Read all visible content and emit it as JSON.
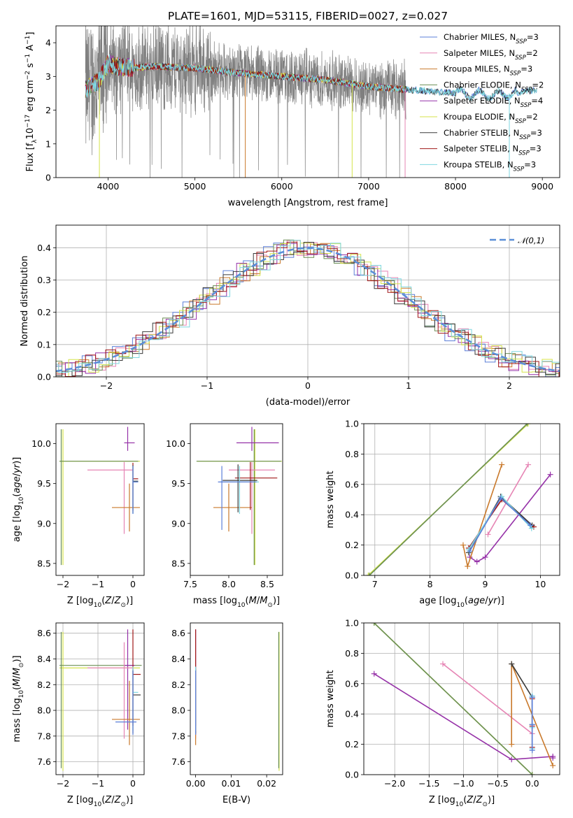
{
  "figure_title": "PLATE=1601, MJD=53115, FIBERID=0027, z=0.027",
  "models": [
    {
      "name": "Chabrier MILES",
      "nssp": "3",
      "color": "#5b7fd8"
    },
    {
      "name": "Salpeter MILES",
      "nssp": "2",
      "color": "#e684b4"
    },
    {
      "name": "Kroupa MILES",
      "nssp": "3",
      "color": "#c9792b"
    },
    {
      "name": "Chabrier ELODIE",
      "nssp": "2",
      "color": "#6b8f55"
    },
    {
      "name": "Salpeter ELODIE",
      "nssp": "4",
      "color": "#9632a8"
    },
    {
      "name": "Kroupa ELODIE",
      "nssp": "2",
      "color": "#d4e34a"
    },
    {
      "name": "Chabrier STELIB",
      "nssp": "3",
      "color": "#3a3a3a"
    },
    {
      "name": "Salpeter STELIB",
      "nssp": "3",
      "color": "#a01818"
    },
    {
      "name": "Kroupa STELIB",
      "nssp": "3",
      "color": "#7fd7e0"
    }
  ],
  "legend_nssp_prefix": "N",
  "legend_nssp_sub": "SSP",
  "chart_data": [
    {
      "id": "spectrum",
      "type": "line",
      "xlabel": "wavelength [Angstrom, rest frame]",
      "ylabel": "Flux [fλ10⁻¹⁷ erg cm⁻² s⁻¹ A⁻¹]",
      "xlim": [
        3400,
        9200
      ],
      "ylim": [
        0,
        4.5
      ],
      "xticks": [
        4000,
        5000,
        6000,
        7000,
        8000,
        9000
      ],
      "yticks": [
        0,
        1,
        2,
        3,
        4
      ],
      "grid": false,
      "legend_position": "top-right",
      "data_wavelength_range": [
        3740,
        7430
      ],
      "model_wavelength_range": [
        3740,
        8940
      ],
      "continuum_knots_x": [
        3740,
        3900,
        4000,
        4100,
        4300,
        4500,
        5000,
        5500,
        6000,
        6500,
        7000,
        7500,
        8000,
        8500,
        8940
      ],
      "continuum_knots_y": [
        2.6,
        2.9,
        3.4,
        3.3,
        3.25,
        3.3,
        3.25,
        3.1,
        3.0,
        2.9,
        2.7,
        2.6,
        2.5,
        2.45,
        2.6
      ]
    },
    {
      "id": "residuals",
      "type": "step",
      "xlabel": "(data-model)/error",
      "ylabel": "Normed distribution",
      "xlim": [
        -2.5,
        2.5
      ],
      "ylim": [
        0,
        0.47
      ],
      "xticks": [
        -2,
        -1,
        0,
        1,
        2
      ],
      "yticks": [
        0.0,
        0.1,
        0.2,
        0.3,
        0.4
      ],
      "grid": true,
      "legend_position": "top-right",
      "reference_label": "𝒩(0,1)",
      "reference": "normal(0,1)",
      "bin_width": 0.1
    },
    {
      "id": "age_vs_Z",
      "type": "errorbar",
      "xlabel": "Z [log10(Z/Z⊙)]",
      "ylabel": "age  [log10(age/yr)]",
      "xlim": [
        -2.2,
        0.32
      ],
      "ylim": [
        8.35,
        10.25
      ],
      "xticks": [
        -2,
        -1,
        0
      ],
      "yticks": [
        8.5,
        9.0,
        9.5,
        10.0
      ],
      "grid": false,
      "points": [
        {
          "model": 5,
          "x": -2.0,
          "xerr": [
            0.1,
            2.2
          ],
          "y": 9.78,
          "yerr": [
            1.3,
            0.4
          ]
        },
        {
          "model": 3,
          "x": -2.05,
          "xerr": [
            0.05,
            2.2
          ],
          "y": 9.78,
          "yerr": [
            1.3,
            0.4
          ]
        },
        {
          "model": 4,
          "x": -0.15,
          "xerr": [
            0.1,
            0.2
          ],
          "y": 10.01,
          "yerr": [
            0.1,
            0.2
          ]
        },
        {
          "model": 1,
          "x": -0.25,
          "xerr": [
            1.05,
            0.25
          ],
          "y": 9.67,
          "yerr": [
            0.8,
            0.1
          ]
        },
        {
          "model": 2,
          "x": -0.1,
          "xerr": [
            0.5,
            0.3
          ],
          "y": 9.2,
          "yerr": [
            0.3,
            0.3
          ]
        },
        {
          "model": 7,
          "x": 0.0,
          "xerr": [
            0.0,
            0.15
          ],
          "y": 9.56,
          "yerr": [
            0.4,
            0.2
          ]
        },
        {
          "model": 6,
          "x": 0.0,
          "xerr": [
            0.0,
            0.15
          ],
          "y": 9.53,
          "yerr": [
            0.4,
            0.2
          ]
        },
        {
          "model": 8,
          "x": 0.0,
          "xerr": [
            0.0,
            0.15
          ],
          "y": 9.52,
          "yerr": [
            0.4,
            0.2
          ]
        },
        {
          "model": 0,
          "x": 0.0,
          "xerr": [
            0.0,
            0.15
          ],
          "y": 9.52,
          "yerr": [
            0.4,
            0.2
          ]
        }
      ]
    },
    {
      "id": "age_vs_mass",
      "type": "errorbar",
      "xlabel": "mass [log10(M/M⊙)]",
      "ylabel": "",
      "xlim": [
        7.5,
        8.7
      ],
      "ylim": [
        8.35,
        10.25
      ],
      "xticks": [
        7.5,
        8.0,
        8.5
      ],
      "yticks": [
        8.5,
        9.0,
        9.5,
        10.0
      ],
      "grid": false,
      "points": [
        {
          "model": 5,
          "x": 8.34,
          "xerr": [
            0.75,
            0.35
          ],
          "y": 9.78,
          "yerr": [
            1.3,
            0.4
          ]
        },
        {
          "model": 3,
          "x": 8.33,
          "xerr": [
            0.75,
            0.35
          ],
          "y": 9.78,
          "yerr": [
            1.3,
            0.4
          ]
        },
        {
          "model": 4,
          "x": 8.3,
          "xerr": [
            0.2,
            0.35
          ],
          "y": 10.01,
          "yerr": [
            0.1,
            0.2
          ]
        },
        {
          "model": 1,
          "x": 8.3,
          "xerr": [
            0.3,
            0.3
          ],
          "y": 9.67,
          "yerr": [
            0.8,
            0.1
          ]
        },
        {
          "model": 2,
          "x": 8.0,
          "xerr": [
            0.2,
            0.3
          ],
          "y": 9.2,
          "yerr": [
            0.3,
            0.3
          ]
        },
        {
          "model": 7,
          "x": 8.28,
          "xerr": [
            0.2,
            0.35
          ],
          "y": 9.57,
          "yerr": [
            0.4,
            0.2
          ]
        },
        {
          "model": 6,
          "x": 8.12,
          "xerr": [
            0.2,
            0.25
          ],
          "y": 9.54,
          "yerr": [
            0.4,
            0.2
          ]
        },
        {
          "model": 8,
          "x": 8.14,
          "xerr": [
            0.25,
            0.25
          ],
          "y": 9.52,
          "yerr": [
            0.4,
            0.2
          ]
        },
        {
          "model": 0,
          "x": 7.91,
          "xerr": [
            0.05,
            0.45
          ],
          "y": 9.52,
          "yerr": [
            0.6,
            0.2
          ]
        }
      ]
    },
    {
      "id": "massweight_vs_age",
      "type": "line",
      "xlabel": "age  [log10(age/yr)]",
      "ylabel": "mass weight",
      "xlim": [
        6.8,
        10.35
      ],
      "ylim": [
        0,
        1.0
      ],
      "xticks": [
        7,
        8,
        9,
        10
      ],
      "yticks": [
        0.0,
        0.2,
        0.4,
        0.6,
        0.8,
        1.0
      ],
      "grid": true,
      "series": [
        {
          "model": 5,
          "x": [
            6.88,
            9.78
          ],
          "y": [
            0.0,
            1.0
          ]
        },
        {
          "model": 3,
          "x": [
            6.9,
            9.76
          ],
          "y": [
            0.0,
            1.0
          ]
        },
        {
          "model": 4,
          "x": [
            8.72,
            8.85,
            9.0,
            10.18
          ],
          "y": [
            0.12,
            0.09,
            0.12,
            0.665
          ]
        },
        {
          "model": 1,
          "x": [
            9.05,
            9.78
          ],
          "y": [
            0.27,
            0.73
          ]
        },
        {
          "model": 2,
          "x": [
            8.6,
            8.68,
            9.3
          ],
          "y": [
            0.2,
            0.06,
            0.73
          ]
        },
        {
          "model": 7,
          "x": [
            8.7,
            9.3,
            9.88
          ],
          "y": [
            0.18,
            0.5,
            0.32
          ]
        },
        {
          "model": 6,
          "x": [
            8.7,
            9.28,
            9.85
          ],
          "y": [
            0.15,
            0.52,
            0.33
          ]
        },
        {
          "model": 8,
          "x": [
            8.7,
            9.3,
            9.84
          ],
          "y": [
            0.17,
            0.52,
            0.31
          ]
        },
        {
          "model": 0,
          "x": [
            8.72,
            9.28,
            9.82
          ],
          "y": [
            0.16,
            0.51,
            0.33
          ]
        }
      ]
    },
    {
      "id": "mass_vs_Z",
      "type": "errorbar",
      "xlabel": "Z [log10(Z/Z⊙)]",
      "ylabel": "mass [log10(M/M⊙)]",
      "xlim": [
        -2.2,
        0.32
      ],
      "ylim": [
        7.5,
        8.68
      ],
      "xticks": [
        -2,
        -1,
        0
      ],
      "yticks": [
        7.6,
        7.8,
        8.0,
        8.2,
        8.4,
        8.6
      ],
      "grid": true,
      "points": [
        {
          "model": 5,
          "x": -2.0,
          "xerr": [
            0.1,
            2.2
          ],
          "y": 8.33,
          "yerr": [
            0.8,
            0.28
          ]
        },
        {
          "model": 3,
          "x": -2.05,
          "xerr": [
            0.05,
            2.3
          ],
          "y": 8.35,
          "yerr": [
            0.8,
            0.26
          ]
        },
        {
          "model": 4,
          "x": -0.15,
          "xerr": [
            0.1,
            0.2
          ],
          "y": 8.35,
          "yerr": [
            0.5,
            0.28
          ]
        },
        {
          "model": 1,
          "x": -0.25,
          "xerr": [
            1.05,
            0.25
          ],
          "y": 8.33,
          "yerr": [
            0.55,
            0.2
          ]
        },
        {
          "model": 2,
          "x": -0.1,
          "xerr": [
            0.5,
            0.3
          ],
          "y": 7.93,
          "yerr": [
            0.2,
            0.3
          ]
        },
        {
          "model": 7,
          "x": 0.0,
          "xerr": [
            0.0,
            0.22
          ],
          "y": 8.28,
          "yerr": [
            0.4,
            0.35
          ]
        },
        {
          "model": 6,
          "x": 0.0,
          "xerr": [
            0.0,
            0.22
          ],
          "y": 8.12,
          "yerr": [
            0.3,
            0.2
          ]
        },
        {
          "model": 8,
          "x": 0.0,
          "xerr": [
            0.0,
            0.15
          ],
          "y": 8.14,
          "yerr": [
            0.3,
            0.2
          ]
        },
        {
          "model": 0,
          "x": 0.0,
          "xerr": [
            0.5,
            0.1
          ],
          "y": 7.91,
          "yerr": [
            0.1,
            0.4
          ]
        }
      ]
    },
    {
      "id": "mass_vs_ebv",
      "type": "errorbar",
      "xlabel": "E(B-V)",
      "ylabel": "",
      "xlim": [
        -0.0015,
        0.0245
      ],
      "ylim": [
        7.5,
        8.68
      ],
      "xticks": [
        0.0,
        0.01,
        0.02
      ],
      "yticks": [
        7.6,
        7.8,
        8.0,
        8.2,
        8.4,
        8.6
      ],
      "grid": false,
      "points": [
        {
          "model": 5,
          "x": 0.0235,
          "xerr": [
            0,
            0
          ],
          "y": 8.33,
          "yerr": [
            0.8,
            0.28
          ]
        },
        {
          "model": 3,
          "x": 0.0234,
          "xerr": [
            0,
            0
          ],
          "y": 8.35,
          "yerr": [
            0.8,
            0.26
          ]
        },
        {
          "model": 4,
          "x": 0.0,
          "xerr": [
            0,
            0
          ],
          "y": 8.35,
          "yerr": [
            0.5,
            0.28
          ]
        },
        {
          "model": 1,
          "x": 0.0,
          "xerr": [
            0,
            0
          ],
          "y": 8.33,
          "yerr": [
            0.55,
            0.2
          ]
        },
        {
          "model": 2,
          "x": 0.0,
          "xerr": [
            0,
            0
          ],
          "y": 7.93,
          "yerr": [
            0.2,
            0.3
          ]
        },
        {
          "model": 7,
          "x": 0.0,
          "xerr": [
            0,
            0
          ],
          "y": 8.28,
          "yerr": [
            0.4,
            0.35
          ]
        },
        {
          "model": 6,
          "x": 0.0,
          "xerr": [
            0,
            0
          ],
          "y": 8.12,
          "yerr": [
            0.3,
            0.2
          ]
        },
        {
          "model": 8,
          "x": 0.0,
          "xerr": [
            0,
            0
          ],
          "y": 8.14,
          "yerr": [
            0.3,
            0.2
          ]
        },
        {
          "model": 0,
          "x": 0.0,
          "xerr": [
            0,
            0
          ],
          "y": 7.91,
          "yerr": [
            0.1,
            0.4
          ]
        }
      ]
    },
    {
      "id": "massweight_vs_Z",
      "type": "line",
      "xlabel": "Z [log10(Z/Z⊙)]",
      "ylabel": "mass weight",
      "xlim": [
        -2.45,
        0.4
      ],
      "ylim": [
        0,
        1.0
      ],
      "xticks": [
        -2.0,
        -1.5,
        -1.0,
        -0.5,
        0.0
      ],
      "yticks": [
        0.0,
        0.2,
        0.4,
        0.6,
        0.8,
        1.0
      ],
      "grid": true,
      "series": [
        {
          "model": 5,
          "x": [
            -2.3,
            0.0
          ],
          "y": [
            1.0,
            0.0
          ]
        },
        {
          "model": 3,
          "x": [
            -2.3,
            0.0
          ],
          "y": [
            1.0,
            0.0
          ]
        },
        {
          "model": 4,
          "x": [
            -2.3,
            -0.3,
            0.3,
            0.3
          ],
          "y": [
            0.665,
            0.1,
            0.12,
            0.11
          ]
        },
        {
          "model": 1,
          "x": [
            -1.3,
            0.0
          ],
          "y": [
            0.73,
            0.27
          ]
        },
        {
          "model": 2,
          "x": [
            -0.3,
            -0.3,
            0.3
          ],
          "y": [
            0.2,
            0.73,
            0.06
          ]
        },
        {
          "model": 7,
          "x": [
            0.0,
            0.0,
            0.0
          ],
          "y": [
            0.18,
            0.5,
            0.32
          ]
        },
        {
          "model": 6,
          "x": [
            -0.3,
            0.0,
            0.0
          ],
          "y": [
            0.73,
            0.51,
            0.33
          ]
        },
        {
          "model": 8,
          "x": [
            0.0,
            0.0,
            0.0
          ],
          "y": [
            0.17,
            0.52,
            0.31
          ]
        },
        {
          "model": 0,
          "x": [
            0.0,
            0.0,
            0.0
          ],
          "y": [
            0.16,
            0.51,
            0.33
          ]
        }
      ]
    }
  ]
}
